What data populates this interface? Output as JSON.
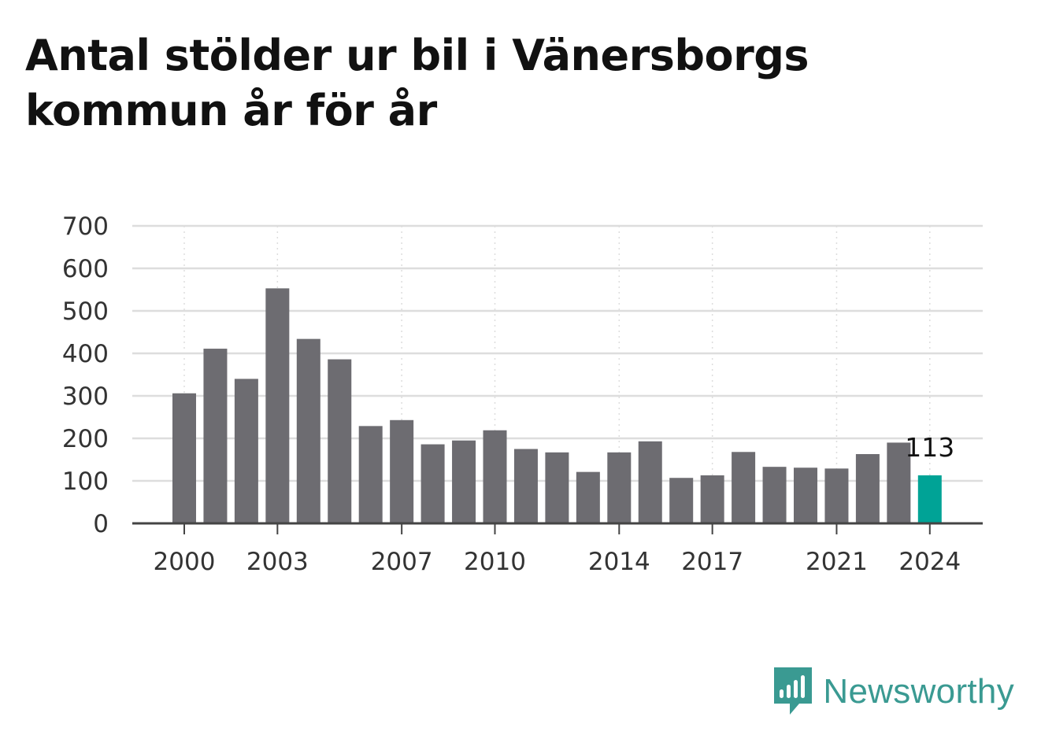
{
  "title": "Antal stölder ur bil i Vänersborgs kommun år för år",
  "brand": {
    "name": "Newsworthy",
    "icon": "newsworthy-logo-icon",
    "color": "#3a9a92"
  },
  "colors": {
    "bar": "#6d6c71",
    "highlight": "#00a396",
    "grid": "#dddddd",
    "axis": "#444444"
  },
  "chart_data": {
    "type": "bar",
    "title": "Antal stölder ur bil i Vänersborgs kommun år för år",
    "xlabel": "",
    "ylabel": "",
    "categories": [
      "2000",
      "2001",
      "2002",
      "2003",
      "2004",
      "2005",
      "2006",
      "2007",
      "2008",
      "2009",
      "2010",
      "2011",
      "2012",
      "2013",
      "2014",
      "2015",
      "2016",
      "2017",
      "2018",
      "2019",
      "2020",
      "2021",
      "2022",
      "2023",
      "2024"
    ],
    "x_tick_labels": [
      "2000",
      "2003",
      "2007",
      "2010",
      "2014",
      "2017",
      "2021",
      "2024"
    ],
    "values": [
      306,
      411,
      340,
      553,
      434,
      386,
      229,
      243,
      186,
      195,
      219,
      175,
      167,
      121,
      167,
      193,
      107,
      113,
      168,
      133,
      131,
      129,
      163,
      190,
      113
    ],
    "highlight": {
      "category": "2024",
      "label": "113"
    },
    "ylim": [
      0,
      700
    ],
    "y_ticks": [
      0,
      100,
      200,
      300,
      400,
      500,
      600,
      700
    ],
    "grid": true,
    "legend": "none"
  }
}
